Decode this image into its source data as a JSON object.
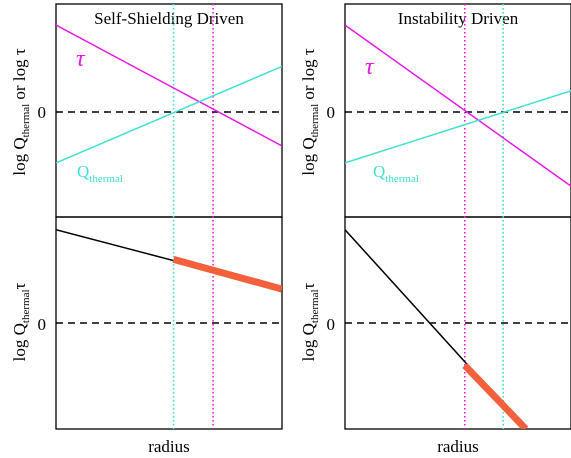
{
  "colors": {
    "tau": "#e817e8",
    "q": "#40e0d0",
    "product": "#000000",
    "highlight": "#f2603c",
    "zero": "#000000",
    "frame": "#000000"
  },
  "shared": {
    "xlabel": "radius",
    "ylabel_top": {
      "pre": "log Q",
      "sub": "thermal",
      "post": " or log τ"
    },
    "ylabel_bottom": {
      "pre": "log Q",
      "sub": "thermal",
      "post": "τ"
    },
    "zero_tick": "0",
    "tau_label": "τ",
    "q_label": {
      "pre": "Q",
      "sub": "thermal"
    }
  },
  "chart_data": [
    {
      "type": "line",
      "title": "Self-Shielding Driven",
      "xlim": [
        0,
        1
      ],
      "top": {
        "ylim": [
          -1,
          1
        ],
        "series": [
          {
            "key": "tau",
            "x": [
              0,
              1
            ],
            "y": [
              0.82,
              -0.32
            ]
          },
          {
            "key": "q",
            "x": [
              0,
              1
            ],
            "y": [
              -0.48,
              0.43
            ]
          }
        ],
        "zero_line": 0
      },
      "bottom": {
        "ylim": [
          -1,
          1
        ],
        "series": [
          {
            "key": "product",
            "x": [
              0,
              1
            ],
            "y": [
              0.88,
              0.32
            ]
          },
          {
            "key": "highlight",
            "x": [
              0.52,
              1
            ],
            "y": [
              0.6,
              0.32
            ]
          }
        ],
        "zero_line": 0
      },
      "vlines": [
        {
          "key": "q",
          "x": 0.52
        },
        {
          "key": "tau",
          "x": 0.695
        }
      ]
    },
    {
      "type": "line",
      "title": "Instability Driven",
      "xlim": [
        0,
        1
      ],
      "top": {
        "ylim": [
          -1,
          1
        ],
        "series": [
          {
            "key": "tau",
            "x": [
              0,
              1
            ],
            "y": [
              0.82,
              -0.7
            ]
          },
          {
            "key": "q",
            "x": [
              0,
              1
            ],
            "y": [
              -0.48,
              0.2
            ]
          }
        ],
        "zero_line": 0
      },
      "bottom": {
        "ylim": [
          -1,
          1
        ],
        "series": [
          {
            "key": "product",
            "x": [
              0,
              0.8
            ],
            "y": [
              0.88,
              -1.0
            ]
          },
          {
            "key": "highlight",
            "x": [
              0.53,
              0.8
            ],
            "y": [
              -0.4,
              -1.0
            ]
          }
        ],
        "zero_line": 0
      },
      "vlines": [
        {
          "key": "tau",
          "x": 0.53
        },
        {
          "key": "q",
          "x": 0.7
        }
      ]
    }
  ]
}
